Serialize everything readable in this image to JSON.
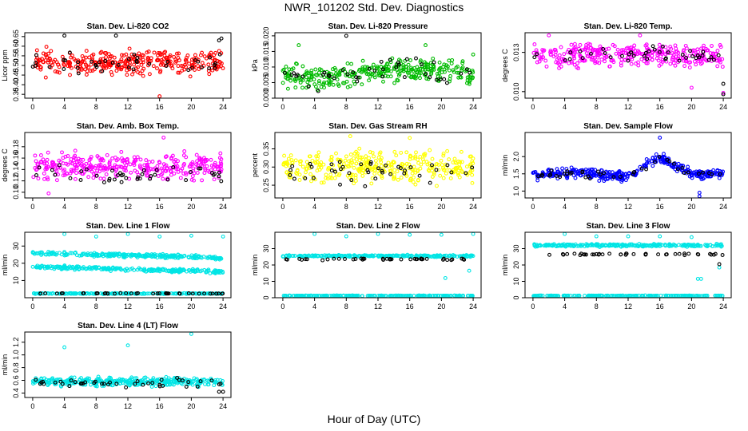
{
  "page": {
    "title": "NWR_101202  Std. Dev. Diagnostics",
    "xlabel": "Hour of Day (UTC)"
  },
  "chart_data": [
    {
      "type": "scatter",
      "title": "Stan. Dev. Li-820 CO2",
      "xlabel": "",
      "ylabel": "Licor ppm",
      "xlim": [
        -1,
        25
      ],
      "ylim": [
        0.33,
        0.67
      ],
      "xticks": [
        0,
        4,
        8,
        12,
        16,
        20,
        24
      ],
      "yticks": [
        0.35,
        0.4,
        0.45,
        0.5,
        0.55,
        0.6,
        0.65
      ],
      "ytick_labels": [
        "0.35",
        "0.40",
        "0.45",
        "0.50",
        "0.55",
        "0.60",
        "0.65"
      ],
      "grid": false,
      "legend": "none",
      "series": [
        {
          "color": "#ff0000",
          "mean": 0.515,
          "spread": 0.05,
          "count": 340,
          "seed": 11,
          "x": [
            16.0
          ],
          "y": [
            0.34
          ]
        },
        {
          "color": "#000000",
          "mean": 0.51,
          "spread": 0.045,
          "count": 42,
          "seed": 12,
          "x": [
            4.0,
            10.5,
            23.5,
            23.8
          ],
          "y": [
            0.655,
            0.655,
            0.63,
            0.64
          ]
        }
      ]
    },
    {
      "type": "scatter",
      "title": "Stan. Dev. Li-820 Pressure",
      "xlabel": "",
      "ylabel": "kPa",
      "xlim": [
        -1,
        25
      ],
      "ylim": [
        0.0,
        0.021
      ],
      "xticks": [
        0,
        4,
        8,
        12,
        16,
        20,
        24
      ],
      "yticks": [
        0.0,
        0.005,
        0.01,
        0.015,
        0.02
      ],
      "ytick_labels": [
        "0.000",
        "0.005",
        "0.010",
        "0.015",
        "0.020"
      ],
      "grid": false,
      "legend": "none",
      "series": [
        {
          "color": "#00bb00",
          "mean": 0.008,
          "spread": 0.003,
          "count": 340,
          "seed": 21,
          "trend": "pressure",
          "x": [
            2.0,
            18.0,
            24.0
          ],
          "y": [
            0.017,
            0.017,
            0.014
          ]
        },
        {
          "color": "#000000",
          "mean": 0.008,
          "spread": 0.003,
          "count": 42,
          "seed": 22,
          "trend": "pressure",
          "x": [
            8.0
          ],
          "y": [
            0.02
          ]
        }
      ]
    },
    {
      "type": "scatter",
      "title": "Stan. Dev. Li-820 Temp.",
      "xlabel": "",
      "ylabel": "degrees C",
      "xlim": [
        -1,
        25
      ],
      "ylim": [
        0.0095,
        0.0145
      ],
      "xticks": [
        0,
        4,
        8,
        12,
        16,
        20,
        24
      ],
      "yticks": [
        0.01,
        0.013
      ],
      "ytick_labels": [
        "0.010",
        "0.013"
      ],
      "grid": false,
      "legend": "none",
      "series": [
        {
          "color": "#ff00ff",
          "mean": 0.0128,
          "spread": 0.0007,
          "count": 340,
          "seed": 31,
          "x": [
            2.0,
            13.5,
            20.0,
            24.0
          ],
          "y": [
            0.0143,
            0.0143,
            0.0103,
            0.0099
          ]
        },
        {
          "color": "#000000",
          "mean": 0.0129,
          "spread": 0.0006,
          "count": 42,
          "seed": 32,
          "x": [
            24.0,
            24.0
          ],
          "y": [
            0.0098,
            0.0106
          ]
        }
      ]
    },
    {
      "type": "scatter",
      "title": "Stan. Dev. Amb. Box Temp.",
      "xlabel": "",
      "ylabel": "degrees C",
      "xlim": [
        -1,
        25
      ],
      "ylim": [
        0.09,
        0.205
      ],
      "xticks": [
        0,
        4,
        8,
        12,
        16,
        20,
        24
      ],
      "yticks": [
        0.1,
        0.12,
        0.14,
        0.16,
        0.18
      ],
      "ytick_labels": [
        "0.10",
        "0.12",
        "0.14",
        "0.16",
        "0.18"
      ],
      "grid": false,
      "legend": "none",
      "series": [
        {
          "color": "#ff00ff",
          "mean": 0.145,
          "spread": 0.018,
          "count": 340,
          "seed": 41,
          "x": [
            2.0,
            16.5
          ],
          "y": [
            0.098,
            0.196
          ]
        },
        {
          "color": "#000000",
          "mean": 0.13,
          "spread": 0.012,
          "count": 42,
          "seed": 42,
          "x": [],
          "y": []
        }
      ]
    },
    {
      "type": "scatter",
      "title": "Stan. Dev. Gas Stream RH",
      "xlabel": "",
      "ylabel": "percent",
      "xlim": [
        -1,
        25
      ],
      "ylim": [
        0.215,
        0.395
      ],
      "xticks": [
        0,
        4,
        8,
        12,
        16,
        20,
        24
      ],
      "yticks": [
        0.25,
        0.3,
        0.35
      ],
      "ytick_labels": [
        "0.25",
        "0.30",
        "0.35"
      ],
      "grid": false,
      "legend": "none",
      "series": [
        {
          "color": "#ffff00",
          "mean": 0.3,
          "spread": 0.035,
          "count": 340,
          "seed": 51,
          "x": [
            8.5,
            16.0
          ],
          "y": [
            0.385,
            0.38
          ]
        },
        {
          "color": "#000000",
          "mean": 0.29,
          "spread": 0.03,
          "count": 42,
          "seed": 52,
          "x": [],
          "y": []
        }
      ]
    },
    {
      "type": "scatter",
      "title": "Stan. Dev. Sample Flow",
      "xlabel": "",
      "ylabel": "ml/min",
      "xlim": [
        -1,
        25
      ],
      "ylim": [
        0.8,
        2.7
      ],
      "xticks": [
        0,
        4,
        8,
        12,
        16,
        20,
        24
      ],
      "yticks": [
        1.0,
        1.5,
        2.0
      ],
      "ytick_labels": [
        "1.0",
        "1.5",
        "2.0"
      ],
      "grid": false,
      "legend": "none",
      "series": [
        {
          "color": "#0000ff",
          "mean": 1.45,
          "spread": 0.12,
          "count": 340,
          "seed": 61,
          "trend": "flow",
          "x": [
            16.0,
            21.0,
            21.0
          ],
          "y": [
            2.55,
            0.95,
            0.85
          ]
        },
        {
          "color": "#000000",
          "mean": 1.45,
          "spread": 0.1,
          "count": 42,
          "seed": 62,
          "trend": "flow",
          "x": [],
          "y": []
        }
      ]
    },
    {
      "type": "scatter",
      "title": "Stan. Dev. Line 1 Flow",
      "xlabel": "",
      "ylabel": "ml/min",
      "xlim": [
        -1,
        25
      ],
      "ylim": [
        0,
        38
      ],
      "xticks": [
        0,
        4,
        8,
        12,
        16,
        20,
        24
      ],
      "yticks": [
        10,
        20,
        30
      ],
      "ytick_labels": [
        "10",
        "20",
        "30"
      ],
      "grid": false,
      "legend": "none",
      "series": [
        {
          "color": "#00e5e5",
          "mean": 26,
          "spread": 0.9,
          "count": 240,
          "seed": 71,
          "trend": "down",
          "x": [
            4.0,
            8.0,
            12.0,
            16.0,
            20.0,
            24.0
          ],
          "y": [
            37,
            35.5,
            37,
            35.5,
            36,
            35.5
          ]
        },
        {
          "color": "#00e5e5",
          "mean": 18,
          "spread": 0.9,
          "count": 240,
          "seed": 72,
          "trend": "down",
          "x": [],
          "y": []
        },
        {
          "color": "#00e5e5",
          "mean": 2.4,
          "spread": 0.25,
          "count": 200,
          "seed": 73,
          "x": [],
          "y": []
        },
        {
          "color": "#000000",
          "mean": 2.5,
          "spread": 0.2,
          "count": 42,
          "seed": 74,
          "x": [],
          "y": []
        }
      ]
    },
    {
      "type": "scatter",
      "title": "Stan. Dev. Line 2 Flow",
      "xlabel": "",
      "ylabel": "ml/min",
      "xlim": [
        -1,
        25
      ],
      "ylim": [
        0,
        40
      ],
      "xticks": [
        0,
        4,
        8,
        12,
        16,
        20,
        24
      ],
      "yticks": [
        0,
        10,
        20,
        30
      ],
      "ytick_labels": [
        "0",
        "10",
        "20",
        "30"
      ],
      "grid": false,
      "legend": "none",
      "series": [
        {
          "color": "#00e5e5",
          "mean": 25.5,
          "spread": 0.5,
          "count": 240,
          "seed": 81,
          "x": [
            4.0,
            8.0,
            12.0,
            16.0,
            20.0,
            20.5,
            23.5,
            24.0
          ],
          "y": [
            39,
            37.5,
            39,
            38.5,
            38.5,
            12.0,
            16.5,
            39.0
          ]
        },
        {
          "color": "#00e5e5",
          "mean": 1.2,
          "spread": 0.15,
          "count": 200,
          "seed": 82,
          "x": [],
          "y": []
        },
        {
          "color": "#000000",
          "mean": 23.5,
          "spread": 0.4,
          "count": 42,
          "seed": 83,
          "x": [],
          "y": []
        }
      ]
    },
    {
      "type": "scatter",
      "title": "Stan. Dev. Line 3 Flow",
      "xlabel": "",
      "ylabel": "ml/min",
      "xlim": [
        -1,
        25
      ],
      "ylim": [
        0,
        40
      ],
      "xticks": [
        0,
        4,
        8,
        12,
        16,
        20,
        24
      ],
      "yticks": [
        0,
        10,
        20,
        30
      ],
      "ytick_labels": [
        "0",
        "10",
        "20",
        "30"
      ],
      "grid": false,
      "legend": "none",
      "series": [
        {
          "color": "#00e5e5",
          "mean": 32,
          "spread": 0.7,
          "count": 240,
          "seed": 91,
          "x": [
            4.0,
            8.0,
            12.0,
            16.0,
            20.0,
            20.8,
            21.2,
            23.5
          ],
          "y": [
            39,
            37.5,
            37.5,
            37.5,
            37.0,
            11.5,
            11.5,
            18.5
          ]
        },
        {
          "color": "#00e5e5",
          "mean": 1.2,
          "spread": 0.15,
          "count": 200,
          "seed": 92,
          "x": [],
          "y": []
        },
        {
          "color": "#000000",
          "mean": 26.5,
          "spread": 0.4,
          "count": 42,
          "seed": 93,
          "x": [
            23.5
          ],
          "y": [
            20.5
          ]
        }
      ]
    },
    {
      "type": "scatter",
      "title": "Stan. Dev. Line 4 (LT) Flow",
      "xlabel": "",
      "ylabel": "ml/min",
      "xlim": [
        -1,
        25
      ],
      "ylim": [
        0.33,
        1.36
      ],
      "xticks": [
        0,
        4,
        8,
        12,
        16,
        20,
        24
      ],
      "yticks": [
        0.4,
        0.6,
        0.8,
        1.0,
        1.2
      ],
      "ytick_labels": [
        "0.4",
        "0.6",
        "0.8",
        "1.0",
        "1.2"
      ],
      "grid": false,
      "legend": "none",
      "series": [
        {
          "color": "#00e5e5",
          "mean": 0.58,
          "spread": 0.055,
          "count": 340,
          "seed": 101,
          "x": [
            4.0,
            12.0,
            20.0
          ],
          "y": [
            1.12,
            1.15,
            1.33
          ]
        },
        {
          "color": "#000000",
          "mean": 0.56,
          "spread": 0.055,
          "count": 42,
          "seed": 102,
          "x": [
            23.5,
            24.0
          ],
          "y": [
            0.42,
            0.42
          ]
        }
      ]
    }
  ]
}
